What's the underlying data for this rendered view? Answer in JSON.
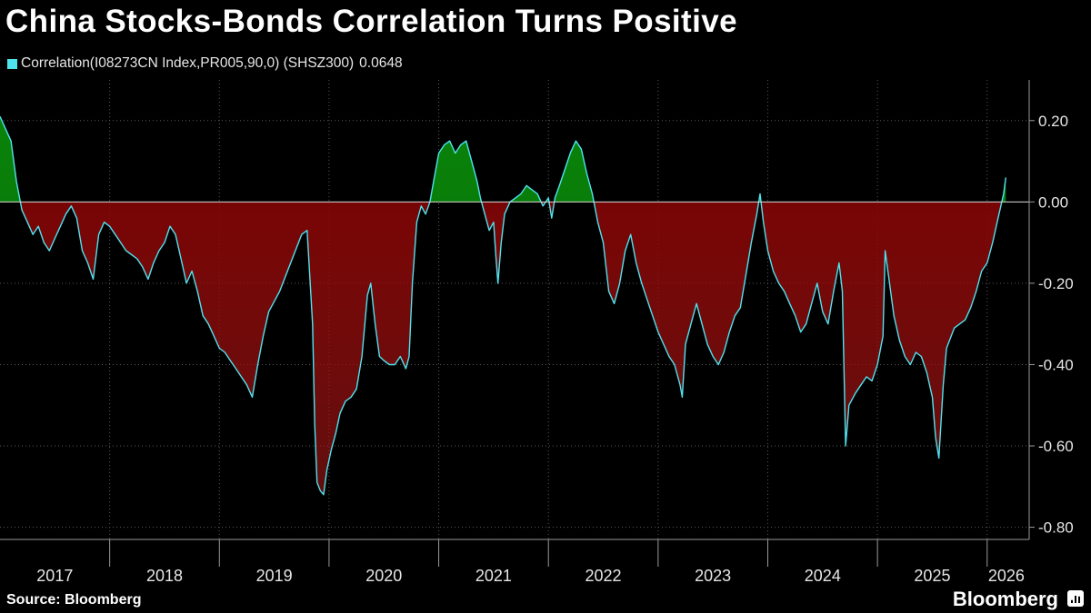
{
  "chart_data": {
    "type": "area",
    "title": "China Stocks-Bonds Correlation Turns Positive",
    "series": [
      {
        "name": "Correlation(I08273CN Index,PR005,90,0) (SHSZ300)",
        "last_value": "0.0648",
        "color": "#4fe3f0"
      }
    ],
    "colors": {
      "positive_fill": "#0a8a0a",
      "negative_fill": "#b01818",
      "legend_swatch": "#4fe3f0"
    },
    "ylim": [
      -0.83,
      0.3
    ],
    "yticks": [
      0.2,
      0.0,
      -0.2,
      -0.4,
      -0.6,
      -0.8
    ],
    "ytick_labels": [
      "0.20",
      "0.00",
      "-0.20",
      "-0.40",
      "-0.60",
      "-0.80"
    ],
    "xlim": [
      2017.0,
      2026.35
    ],
    "xtick_labels": [
      "2017",
      "2018",
      "2019",
      "2020",
      "2021",
      "2022",
      "2023",
      "2024",
      "2025",
      "2026"
    ],
    "points": [
      [
        2017.0,
        0.21
      ],
      [
        2017.05,
        0.18
      ],
      [
        2017.1,
        0.15
      ],
      [
        2017.15,
        0.05
      ],
      [
        2017.2,
        -0.02
      ],
      [
        2017.25,
        -0.05
      ],
      [
        2017.3,
        -0.08
      ],
      [
        2017.35,
        -0.06
      ],
      [
        2017.4,
        -0.1
      ],
      [
        2017.45,
        -0.12
      ],
      [
        2017.5,
        -0.09
      ],
      [
        2017.55,
        -0.06
      ],
      [
        2017.6,
        -0.03
      ],
      [
        2017.65,
        -0.01
      ],
      [
        2017.7,
        -0.04
      ],
      [
        2017.75,
        -0.12
      ],
      [
        2017.8,
        -0.15
      ],
      [
        2017.85,
        -0.19
      ],
      [
        2017.9,
        -0.08
      ],
      [
        2017.95,
        -0.05
      ],
      [
        2018.0,
        -0.06
      ],
      [
        2018.05,
        -0.08
      ],
      [
        2018.1,
        -0.1
      ],
      [
        2018.15,
        -0.12
      ],
      [
        2018.2,
        -0.13
      ],
      [
        2018.25,
        -0.14
      ],
      [
        2018.3,
        -0.16
      ],
      [
        2018.35,
        -0.19
      ],
      [
        2018.4,
        -0.15
      ],
      [
        2018.45,
        -0.12
      ],
      [
        2018.5,
        -0.1
      ],
      [
        2018.55,
        -0.06
      ],
      [
        2018.6,
        -0.08
      ],
      [
        2018.65,
        -0.14
      ],
      [
        2018.7,
        -0.2
      ],
      [
        2018.75,
        -0.17
      ],
      [
        2018.8,
        -0.22
      ],
      [
        2018.85,
        -0.28
      ],
      [
        2018.9,
        -0.3
      ],
      [
        2018.95,
        -0.33
      ],
      [
        2019.0,
        -0.36
      ],
      [
        2019.05,
        -0.37
      ],
      [
        2019.1,
        -0.39
      ],
      [
        2019.15,
        -0.41
      ],
      [
        2019.2,
        -0.43
      ],
      [
        2019.25,
        -0.45
      ],
      [
        2019.3,
        -0.48
      ],
      [
        2019.35,
        -0.4
      ],
      [
        2019.4,
        -0.33
      ],
      [
        2019.45,
        -0.27
      ],
      [
        2019.55,
        -0.22
      ],
      [
        2019.65,
        -0.15
      ],
      [
        2019.75,
        -0.08
      ],
      [
        2019.8,
        -0.07
      ],
      [
        2019.85,
        -0.3
      ],
      [
        2019.87,
        -0.55
      ],
      [
        2019.89,
        -0.69
      ],
      [
        2019.92,
        -0.71
      ],
      [
        2019.95,
        -0.72
      ],
      [
        2019.98,
        -0.66
      ],
      [
        2020.02,
        -0.61
      ],
      [
        2020.06,
        -0.57
      ],
      [
        2020.1,
        -0.52
      ],
      [
        2020.15,
        -0.49
      ],
      [
        2020.2,
        -0.48
      ],
      [
        2020.25,
        -0.46
      ],
      [
        2020.3,
        -0.38
      ],
      [
        2020.35,
        -0.23
      ],
      [
        2020.38,
        -0.2
      ],
      [
        2020.42,
        -0.3
      ],
      [
        2020.46,
        -0.38
      ],
      [
        2020.5,
        -0.39
      ],
      [
        2020.55,
        -0.4
      ],
      [
        2020.6,
        -0.4
      ],
      [
        2020.65,
        -0.38
      ],
      [
        2020.7,
        -0.41
      ],
      [
        2020.73,
        -0.38
      ],
      [
        2020.76,
        -0.2
      ],
      [
        2020.8,
        -0.05
      ],
      [
        2020.84,
        -0.01
      ],
      [
        2020.88,
        -0.03
      ],
      [
        2020.92,
        0.0
      ],
      [
        2020.96,
        0.06
      ],
      [
        2021.0,
        0.12
      ],
      [
        2021.05,
        0.14
      ],
      [
        2021.1,
        0.15
      ],
      [
        2021.15,
        0.12
      ],
      [
        2021.2,
        0.14
      ],
      [
        2021.25,
        0.15
      ],
      [
        2021.3,
        0.1
      ],
      [
        2021.35,
        0.05
      ],
      [
        2021.38,
        0.01
      ],
      [
        2021.42,
        -0.03
      ],
      [
        2021.46,
        -0.07
      ],
      [
        2021.5,
        -0.05
      ],
      [
        2021.52,
        -0.13
      ],
      [
        2021.54,
        -0.2
      ],
      [
        2021.57,
        -0.1
      ],
      [
        2021.6,
        -0.03
      ],
      [
        2021.65,
        0.0
      ],
      [
        2021.7,
        0.01
      ],
      [
        2021.75,
        0.02
      ],
      [
        2021.8,
        0.04
      ],
      [
        2021.85,
        0.03
      ],
      [
        2021.9,
        0.02
      ],
      [
        2021.95,
        -0.01
      ],
      [
        2022.0,
        0.01
      ],
      [
        2022.03,
        -0.04
      ],
      [
        2022.06,
        0.01
      ],
      [
        2022.1,
        0.04
      ],
      [
        2022.15,
        0.08
      ],
      [
        2022.2,
        0.12
      ],
      [
        2022.25,
        0.15
      ],
      [
        2022.3,
        0.13
      ],
      [
        2022.35,
        0.07
      ],
      [
        2022.4,
        0.02
      ],
      [
        2022.45,
        -0.05
      ],
      [
        2022.5,
        -0.1
      ],
      [
        2022.55,
        -0.22
      ],
      [
        2022.6,
        -0.25
      ],
      [
        2022.65,
        -0.2
      ],
      [
        2022.7,
        -0.12
      ],
      [
        2022.75,
        -0.08
      ],
      [
        2022.8,
        -0.15
      ],
      [
        2022.85,
        -0.2
      ],
      [
        2022.9,
        -0.24
      ],
      [
        2022.95,
        -0.28
      ],
      [
        2023.0,
        -0.32
      ],
      [
        2023.05,
        -0.35
      ],
      [
        2023.1,
        -0.38
      ],
      [
        2023.15,
        -0.4
      ],
      [
        2023.2,
        -0.45
      ],
      [
        2023.22,
        -0.48
      ],
      [
        2023.25,
        -0.35
      ],
      [
        2023.3,
        -0.3
      ],
      [
        2023.35,
        -0.25
      ],
      [
        2023.4,
        -0.3
      ],
      [
        2023.45,
        -0.35
      ],
      [
        2023.5,
        -0.38
      ],
      [
        2023.55,
        -0.4
      ],
      [
        2023.6,
        -0.37
      ],
      [
        2023.65,
        -0.32
      ],
      [
        2023.7,
        -0.28
      ],
      [
        2023.75,
        -0.26
      ],
      [
        2023.8,
        -0.18
      ],
      [
        2023.85,
        -0.1
      ],
      [
        2023.9,
        -0.03
      ],
      [
        2023.93,
        0.02
      ],
      [
        2023.96,
        -0.05
      ],
      [
        2024.0,
        -0.12
      ],
      [
        2024.05,
        -0.17
      ],
      [
        2024.1,
        -0.2
      ],
      [
        2024.15,
        -0.22
      ],
      [
        2024.2,
        -0.25
      ],
      [
        2024.25,
        -0.28
      ],
      [
        2024.3,
        -0.32
      ],
      [
        2024.35,
        -0.3
      ],
      [
        2024.4,
        -0.25
      ],
      [
        2024.45,
        -0.2
      ],
      [
        2024.5,
        -0.27
      ],
      [
        2024.55,
        -0.3
      ],
      [
        2024.6,
        -0.22
      ],
      [
        2024.65,
        -0.15
      ],
      [
        2024.68,
        -0.22
      ],
      [
        2024.71,
        -0.6
      ],
      [
        2024.74,
        -0.5
      ],
      [
        2024.8,
        -0.47
      ],
      [
        2024.85,
        -0.45
      ],
      [
        2024.9,
        -0.43
      ],
      [
        2024.95,
        -0.44
      ],
      [
        2025.0,
        -0.4
      ],
      [
        2025.05,
        -0.33
      ],
      [
        2025.07,
        -0.12
      ],
      [
        2025.1,
        -0.18
      ],
      [
        2025.15,
        -0.28
      ],
      [
        2025.2,
        -0.34
      ],
      [
        2025.25,
        -0.38
      ],
      [
        2025.3,
        -0.4
      ],
      [
        2025.35,
        -0.37
      ],
      [
        2025.4,
        -0.38
      ],
      [
        2025.45,
        -0.42
      ],
      [
        2025.5,
        -0.48
      ],
      [
        2025.53,
        -0.58
      ],
      [
        2025.56,
        -0.63
      ],
      [
        2025.6,
        -0.45
      ],
      [
        2025.63,
        -0.36
      ],
      [
        2025.7,
        -0.31
      ],
      [
        2025.75,
        -0.3
      ],
      [
        2025.8,
        -0.29
      ],
      [
        2025.85,
        -0.26
      ],
      [
        2025.9,
        -0.22
      ],
      [
        2025.95,
        -0.17
      ],
      [
        2026.0,
        -0.15
      ],
      [
        2026.05,
        -0.1
      ],
      [
        2026.1,
        -0.04
      ],
      [
        2026.15,
        0.02
      ],
      [
        2026.17,
        0.06
      ]
    ]
  },
  "footer": {
    "source": "Source: Bloomberg",
    "brand": "Bloomberg"
  }
}
